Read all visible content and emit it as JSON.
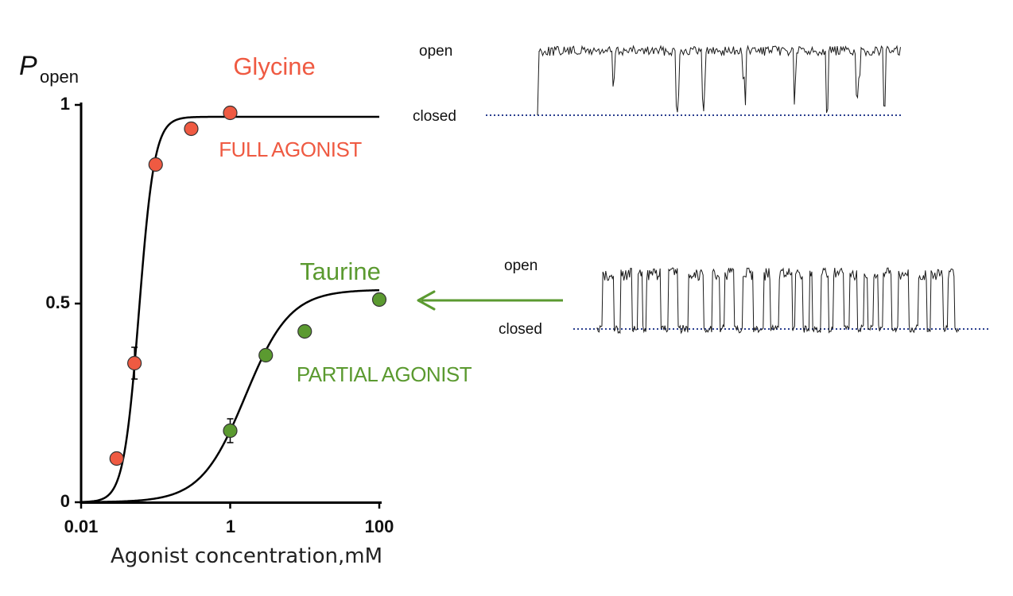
{
  "chart_data": {
    "type": "scatter",
    "x_scale": "log",
    "x_ticks": [
      "0.01",
      "1",
      "100"
    ],
    "y_ticks": [
      "0",
      "0.5",
      "1"
    ],
    "ylabel_main": "P",
    "ylabel_sub": "open",
    "xlabel": "Agonist concentration,mM",
    "xlim": [
      0.01,
      100
    ],
    "ylim": [
      0,
      1
    ],
    "grid": false,
    "series": [
      {
        "name": "Glycine",
        "note": "FULL AGONIST",
        "color": "#ef5a42",
        "points": [
          {
            "x": 0.03,
            "y": 0.11
          },
          {
            "x": 0.052,
            "y": 0.35,
            "err": 0.04
          },
          {
            "x": 0.1,
            "y": 0.85
          },
          {
            "x": 0.3,
            "y": 0.94
          },
          {
            "x": 1.0,
            "y": 0.98
          }
        ],
        "fit": {
          "top": 0.97,
          "ec50": 0.06,
          "hill": 4.2
        }
      },
      {
        "name": "Taurine",
        "note": "PARTIAL AGONIST",
        "color": "#5b9a30",
        "points": [
          {
            "x": 1.0,
            "y": 0.18,
            "err": 0.03
          },
          {
            "x": 3.0,
            "y": 0.37
          },
          {
            "x": 10.0,
            "y": 0.43
          },
          {
            "x": 100.0,
            "y": 0.51
          }
        ],
        "fit": {
          "top": 0.535,
          "ec50": 1.6,
          "hill": 1.45
        }
      }
    ]
  },
  "traces": {
    "glycine": {
      "open_label": "open",
      "closed_label": "closed"
    },
    "taurine": {
      "open_label": "open",
      "closed_label": "closed"
    }
  },
  "colors": {
    "axis": "#000000",
    "closed_line": "#2b3f8f",
    "arrow": "#5b9a30"
  }
}
